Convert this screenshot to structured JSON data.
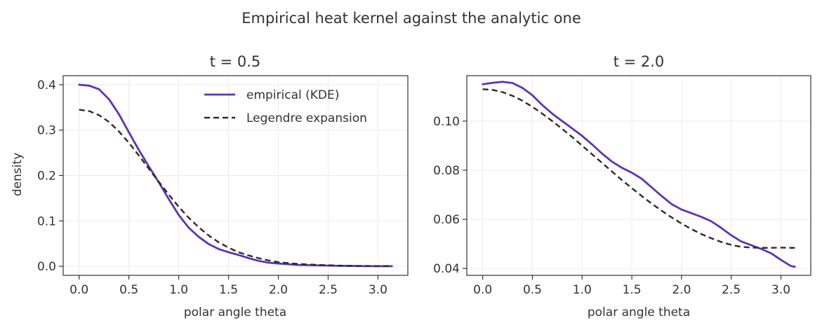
{
  "figure_title": "Empirical heat kernel against the analytic one",
  "colors": {
    "empirical": "#5e35b1",
    "legendre": "#2b2b2b",
    "axes": "#333333",
    "grid": "#ebebeb",
    "text": "#333333"
  },
  "chart_data": [
    {
      "type": "line",
      "title": "t = 0.5",
      "xlabel": "polar angle theta",
      "ylabel": "density",
      "xlim": [
        -0.16,
        3.3
      ],
      "ylim": [
        -0.02,
        0.42
      ],
      "xticks": [
        0.0,
        0.5,
        1.0,
        1.5,
        2.0,
        2.5,
        3.0
      ],
      "xtick_labels": [
        "0.0",
        "0.5",
        "1.0",
        "1.5",
        "2.0",
        "2.5",
        "3.0"
      ],
      "yticks": [
        0.0,
        0.1,
        0.2,
        0.3,
        0.4
      ],
      "ytick_labels": [
        "0.0",
        "0.1",
        "0.2",
        "0.3",
        "0.4"
      ],
      "grid": true,
      "legend": {
        "position": "top-right",
        "entries": [
          "empirical (KDE)",
          "Legendre expansion"
        ]
      },
      "series": [
        {
          "name": "empirical (KDE)",
          "style": "solid",
          "color": "#5e35b1",
          "x": [
            0.0,
            0.1,
            0.2,
            0.3,
            0.4,
            0.5,
            0.6,
            0.7,
            0.8,
            0.9,
            1.0,
            1.1,
            1.2,
            1.3,
            1.4,
            1.5,
            1.6,
            1.7,
            1.8,
            1.9,
            2.0,
            2.2,
            2.4,
            2.6,
            2.8,
            3.0,
            3.14
          ],
          "y": [
            0.4,
            0.398,
            0.39,
            0.368,
            0.335,
            0.295,
            0.256,
            0.22,
            0.185,
            0.148,
            0.113,
            0.085,
            0.065,
            0.049,
            0.038,
            0.031,
            0.025,
            0.018,
            0.012,
            0.008,
            0.006,
            0.003,
            0.002,
            0.001,
            0.0005,
            0.0003,
            0.0002
          ]
        },
        {
          "name": "Legendre expansion",
          "style": "dashed",
          "color": "#2b2b2b",
          "x": [
            0.0,
            0.1,
            0.2,
            0.3,
            0.4,
            0.5,
            0.6,
            0.7,
            0.8,
            0.9,
            1.0,
            1.1,
            1.2,
            1.3,
            1.4,
            1.5,
            1.6,
            1.7,
            1.8,
            1.9,
            2.0,
            2.2,
            2.4,
            2.6,
            2.8,
            3.0,
            3.14
          ],
          "y": [
            0.345,
            0.342,
            0.333,
            0.318,
            0.297,
            0.272,
            0.244,
            0.215,
            0.186,
            0.158,
            0.131,
            0.107,
            0.086,
            0.068,
            0.053,
            0.041,
            0.031,
            0.024,
            0.018,
            0.013,
            0.009,
            0.005,
            0.003,
            0.0015,
            0.0008,
            0.0004,
            0.0003
          ]
        }
      ]
    },
    {
      "type": "line",
      "title": "t = 2.0",
      "xlabel": "polar angle theta",
      "ylabel": "",
      "xlim": [
        -0.16,
        3.3
      ],
      "ylim": [
        0.0372,
        0.1185
      ],
      "xticks": [
        0.0,
        0.5,
        1.0,
        1.5,
        2.0,
        2.5,
        3.0
      ],
      "xtick_labels": [
        "0.0",
        "0.5",
        "1.0",
        "1.5",
        "2.0",
        "2.5",
        "3.0"
      ],
      "yticks": [
        0.04,
        0.06,
        0.08,
        0.1
      ],
      "ytick_labels": [
        "0.04",
        "0.06",
        "0.08",
        "0.10"
      ],
      "grid": true,
      "series": [
        {
          "name": "empirical (KDE)",
          "style": "solid",
          "color": "#5e35b1",
          "x": [
            0.0,
            0.1,
            0.2,
            0.3,
            0.4,
            0.5,
            0.6,
            0.7,
            0.8,
            0.9,
            1.0,
            1.1,
            1.2,
            1.3,
            1.4,
            1.5,
            1.6,
            1.7,
            1.8,
            1.9,
            2.0,
            2.1,
            2.2,
            2.3,
            2.4,
            2.5,
            2.6,
            2.7,
            2.8,
            2.9,
            3.0,
            3.1,
            3.14
          ],
          "y": [
            0.115,
            0.1156,
            0.116,
            0.1155,
            0.1135,
            0.1105,
            0.1065,
            0.103,
            0.1,
            0.097,
            0.094,
            0.0905,
            0.0868,
            0.0835,
            0.081,
            0.079,
            0.0765,
            0.073,
            0.0695,
            0.0662,
            0.064,
            0.0625,
            0.061,
            0.0592,
            0.0565,
            0.0535,
            0.051,
            0.0495,
            0.048,
            0.0462,
            0.0435,
            0.041,
            0.0407
          ]
        },
        {
          "name": "Legendre expansion",
          "style": "dashed",
          "color": "#2b2b2b",
          "x": [
            0.0,
            0.1,
            0.2,
            0.3,
            0.4,
            0.5,
            0.6,
            0.7,
            0.8,
            0.9,
            1.0,
            1.1,
            1.2,
            1.3,
            1.4,
            1.5,
            1.6,
            1.7,
            1.8,
            1.9,
            2.0,
            2.1,
            2.2,
            2.3,
            2.4,
            2.5,
            2.6,
            2.7,
            2.8,
            2.9,
            3.0,
            3.1,
            3.14
          ],
          "y": [
            0.113,
            0.1127,
            0.1118,
            0.1103,
            0.1083,
            0.1058,
            0.103,
            0.1,
            0.0968,
            0.0935,
            0.09,
            0.0865,
            0.083,
            0.0795,
            0.076,
            0.0727,
            0.0695,
            0.0664,
            0.0635,
            0.0608,
            0.0583,
            0.056,
            0.054,
            0.0523,
            0.0508,
            0.0496,
            0.0488,
            0.0485,
            0.0484,
            0.0484,
            0.0485,
            0.0484,
            0.0484
          ]
        }
      ]
    }
  ]
}
